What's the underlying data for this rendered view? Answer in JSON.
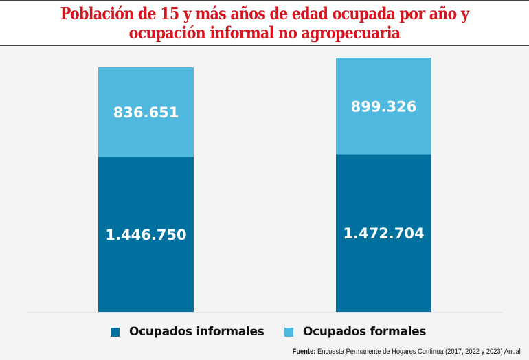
{
  "chart_data": {
    "type": "bar",
    "stacked": true,
    "title": "Población de 15 y más años de edad ocupada por año y ocupación informal no agropecuaria",
    "title_lines": [
      "Población de 15 y más años de edad ocupada por año y",
      "ocupación informal no agropecuaria"
    ],
    "categories": [
      "",
      ""
    ],
    "series": [
      {
        "name": "Ocupados informales",
        "color": "#00709f",
        "values": [
          1446750,
          1472704
        ],
        "labels": [
          "1.446.750",
          "1.472.704"
        ]
      },
      {
        "name": "Ocupados formales",
        "color": "#4eb8de",
        "values": [
          836651,
          899326
        ],
        "labels": [
          "836.651",
          "899.326"
        ]
      }
    ],
    "xlabel": "",
    "ylabel": "",
    "ylim": [
      0,
      2500000
    ],
    "grid": false,
    "legend_position": "bottom",
    "source_label": "Fuente:",
    "source_text": " Encuesta Permanente de Hogares Continua (2017, 2022 y 2023) Anual"
  }
}
